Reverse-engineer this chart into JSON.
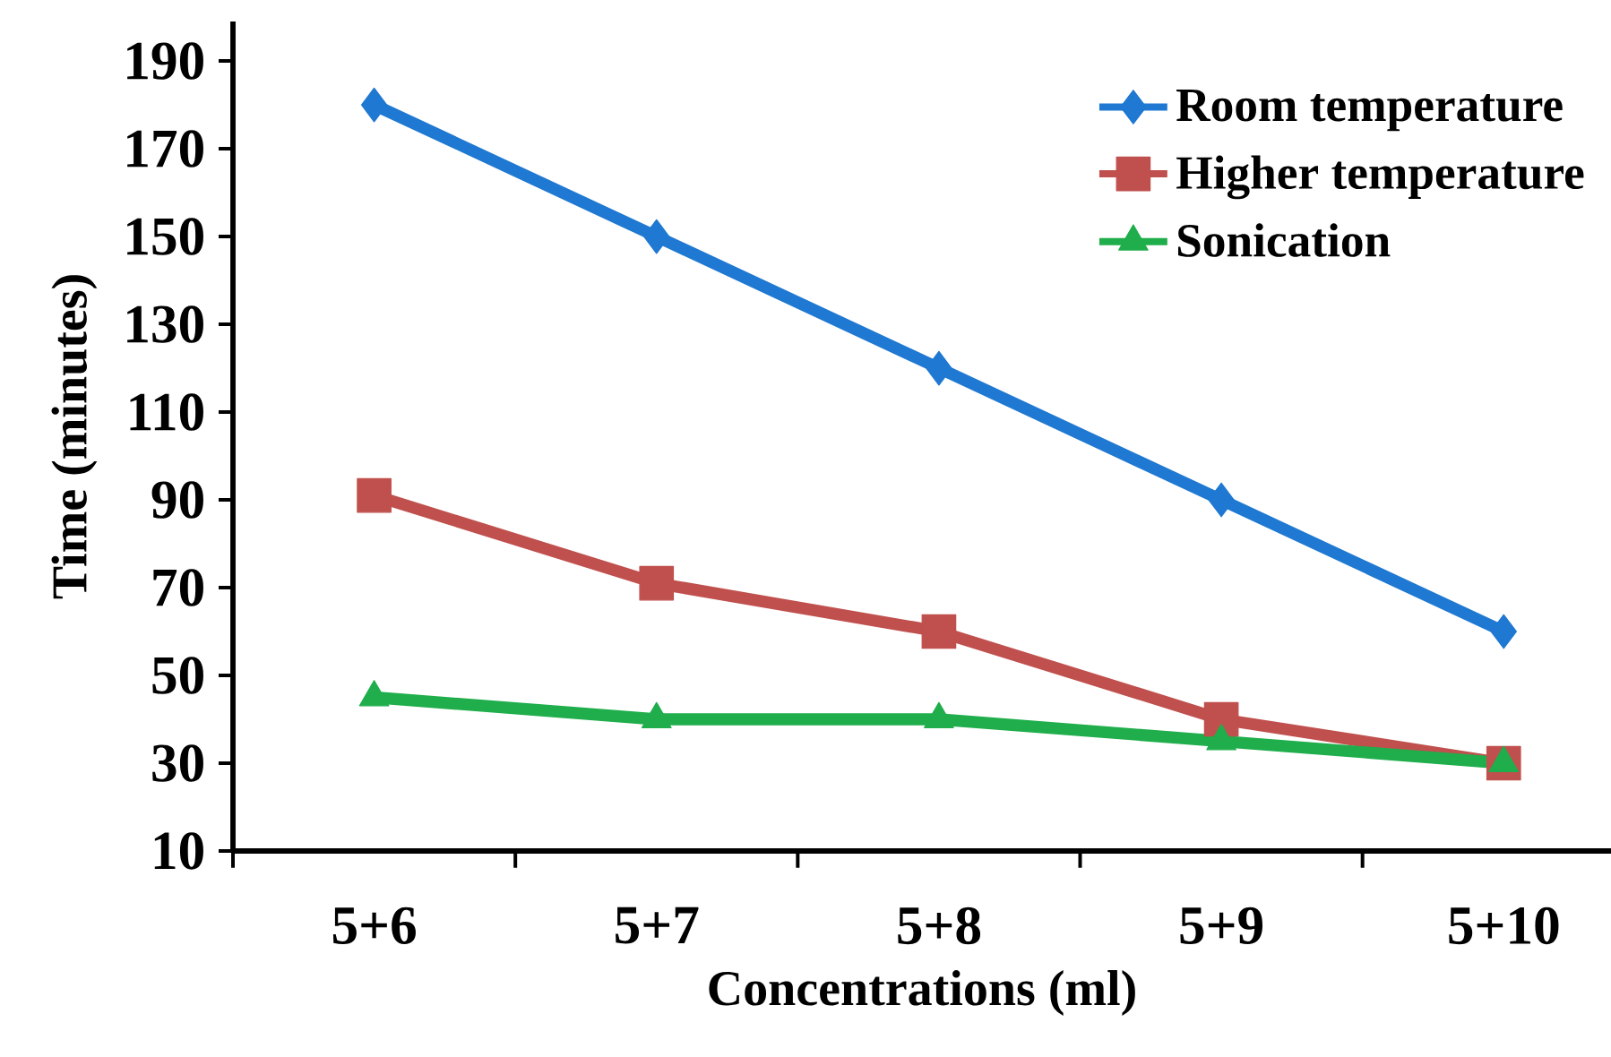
{
  "chart_data": {
    "type": "line",
    "xlabel": "Concentrations (ml)",
    "ylabel": "Time (minutes)",
    "categories": [
      "5+6",
      "5+7",
      "5+8",
      "5+9",
      "5+10"
    ],
    "series": [
      {
        "name": "Room temperature",
        "color": "#1f78d1",
        "marker": "diamond",
        "values": [
          180,
          150,
          120,
          90,
          60
        ]
      },
      {
        "name": "Higher temperature",
        "color": "#c0504d",
        "marker": "square",
        "values": [
          91,
          71,
          60,
          40,
          30
        ]
      },
      {
        "name": "Sonication",
        "color": "#1fae4b",
        "marker": "triangle",
        "values": [
          45,
          40,
          40,
          35,
          30
        ]
      }
    ],
    "ylim": [
      10,
      199
    ],
    "yticks": [
      10,
      30,
      50,
      70,
      90,
      110,
      130,
      150,
      170,
      190
    ],
    "grid": false,
    "legend": "top right",
    "line_style": "solid"
  }
}
